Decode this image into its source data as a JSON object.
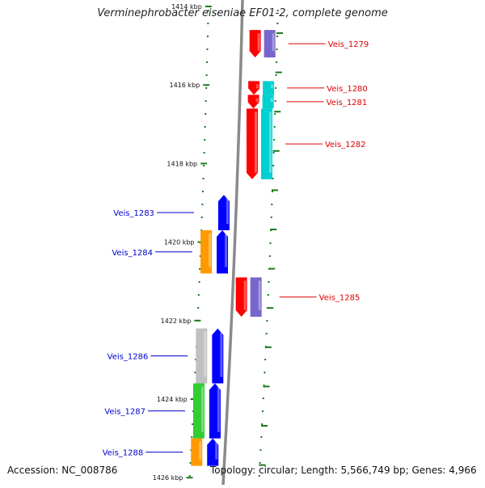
{
  "title": "Verminephrobacter eiseniae EF01-2, complete genome",
  "footer": {
    "accession": "Accession: NC_008786",
    "summary": "Topology: circular; Length: 5,566,749 bp; Genes: 4,966"
  },
  "colors": {
    "backbone": "#8a8a8a",
    "tick": "#1a7a1a",
    "forward_label": "#e00000",
    "reverse_label": "#0000d0",
    "red": "#ff0000",
    "cyan": "#00d0d0",
    "blue": "#0000ff",
    "orange": "#ff9900",
    "gray": "#c0c0c0",
    "green": "#33cc33",
    "purple": "#7766cc"
  },
  "ruler": {
    "unit": "kbp",
    "major_ticks": [
      {
        "position_kbp": 1414,
        "label": "1414 kbp"
      },
      {
        "position_kbp": 1416,
        "label": "1416 kbp"
      },
      {
        "position_kbp": 1418,
        "label": "1418 kbp"
      },
      {
        "position_kbp": 1420,
        "label": "1420 kbp"
      },
      {
        "position_kbp": 1422,
        "label": "1422 kbp"
      },
      {
        "position_kbp": 1424,
        "label": "1424 kbp"
      },
      {
        "position_kbp": 1426,
        "label": "1426 kbp"
      }
    ]
  },
  "genes": [
    {
      "name": "Veis_1279",
      "strand": "forward",
      "start_kbp": 1414.6,
      "end_kbp": 1415.3
    },
    {
      "name": "Veis_1280",
      "strand": "forward",
      "start_kbp": 1415.9,
      "end_kbp": 1416.25
    },
    {
      "name": "Veis_1281",
      "strand": "forward",
      "start_kbp": 1416.25,
      "end_kbp": 1416.6
    },
    {
      "name": "Veis_1282",
      "strand": "forward",
      "start_kbp": 1416.6,
      "end_kbp": 1418.4
    },
    {
      "name": "Veis_1283",
      "strand": "reverse",
      "start_kbp": 1418.8,
      "end_kbp": 1419.7
    },
    {
      "name": "Veis_1284",
      "strand": "reverse",
      "start_kbp": 1419.7,
      "end_kbp": 1420.8
    },
    {
      "name": "Veis_1285",
      "strand": "forward",
      "start_kbp": 1420.9,
      "end_kbp": 1421.9
    },
    {
      "name": "Veis_1286",
      "strand": "reverse",
      "start_kbp": 1422.2,
      "end_kbp": 1423.6
    },
    {
      "name": "Veis_1287",
      "strand": "reverse",
      "start_kbp": 1423.6,
      "end_kbp": 1425.0
    },
    {
      "name": "Veis_1288",
      "strand": "reverse",
      "start_kbp": 1425.0,
      "end_kbp": 1425.7
    }
  ]
}
